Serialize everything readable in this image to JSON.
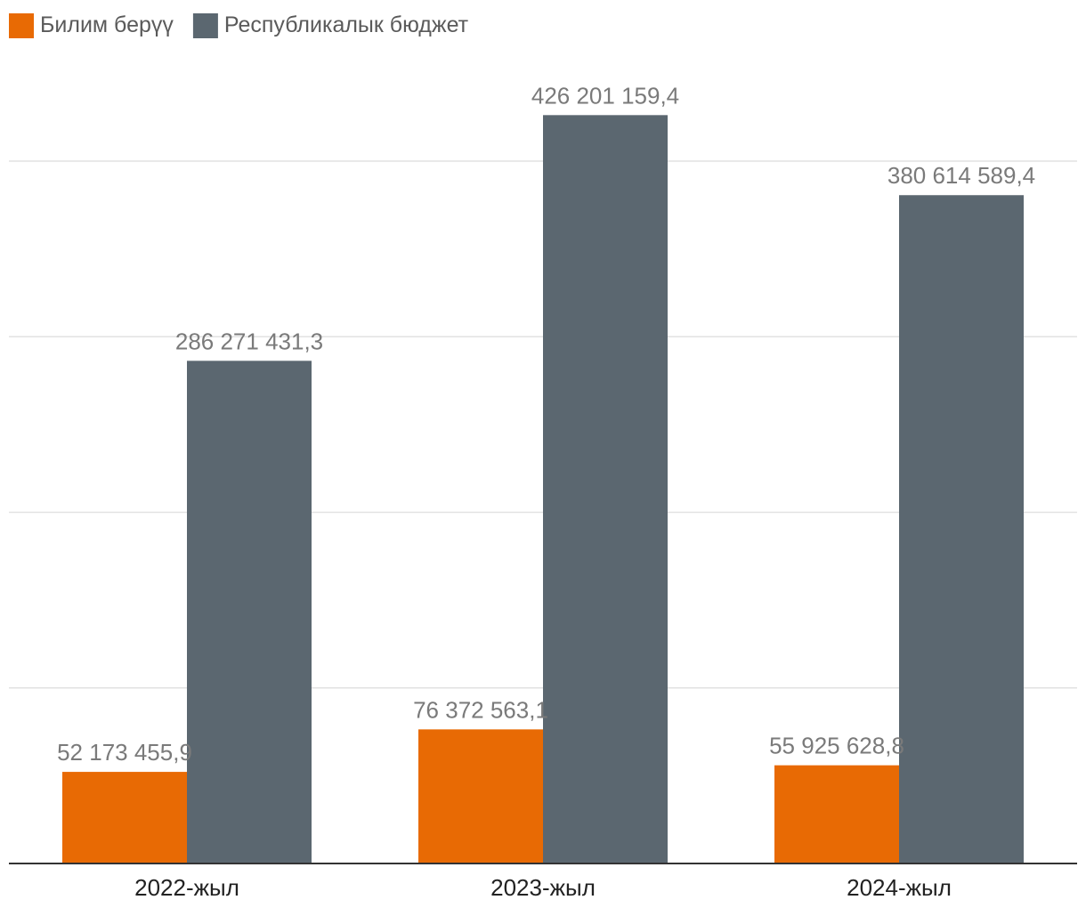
{
  "chart_data": {
    "type": "bar",
    "title": "",
    "xlabel": "",
    "ylabel": "",
    "categories": [
      "2022-жыл",
      "2023-жыл",
      "2024-жыл"
    ],
    "series": [
      {
        "name": "Билим берүү",
        "color": "#e86a04",
        "values": [
          52173455.9,
          76372563.1,
          55925628.8
        ],
        "labels": [
          "52 173 455,9",
          "76 372 563,1",
          "55 925 628,8"
        ]
      },
      {
        "name": "Республикалык бюджет",
        "color": "#5b6770",
        "values": [
          286271431.3,
          426201159.4,
          380614589.4
        ],
        "labels": [
          "286 271 431,3",
          "426 201 159,4",
          "380 614 589,4"
        ]
      }
    ],
    "ylim": [
      0,
      400000000
    ],
    "gridlines": [
      100000000,
      200000000,
      300000000,
      400000000
    ],
    "y_tick_labels_visible": false,
    "grid": true,
    "legend_position": "top-left",
    "colors": {
      "grid": "#e2e2e2",
      "axis": "#333333"
    }
  }
}
